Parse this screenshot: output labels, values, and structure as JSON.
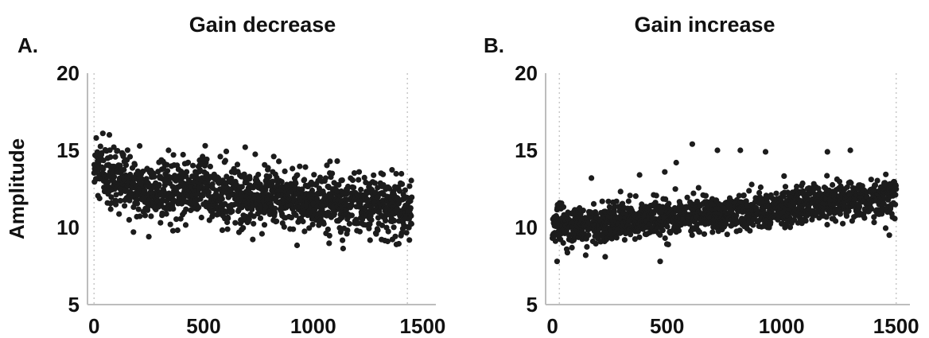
{
  "chart_data": [
    {
      "type": "scatter",
      "panel_letter": "A.",
      "title": "Gain decrease",
      "xlabel": "",
      "ylabel": "Amplitude",
      "xlim": [
        -30,
        1560
      ],
      "ylim": [
        5,
        20
      ],
      "xticks": [
        0,
        500,
        1000,
        1500
      ],
      "yticks": [
        5,
        10,
        15,
        20
      ],
      "tick_labels_x": [
        "0",
        "500",
        "1000",
        "1500"
      ],
      "tick_labels_y": [
        "5",
        "10",
        "15",
        "20"
      ],
      "marker_lines_x": [
        0,
        1430
      ],
      "n_points": 1450,
      "trend": [
        [
          0,
          13.6
        ],
        [
          100,
          12.9
        ],
        [
          250,
          12.4
        ],
        [
          400,
          12.2
        ],
        [
          500,
          12.9
        ],
        [
          530,
          12.1
        ],
        [
          800,
          11.9
        ],
        [
          1000,
          11.7
        ],
        [
          1200,
          11.4
        ],
        [
          1450,
          11.2
        ]
      ],
      "spread_sd": 0.95,
      "outliers": [
        {
          "x": 10,
          "y": 15.8
        },
        {
          "x": 40,
          "y": 16.1
        },
        {
          "x": 70,
          "y": 16.0
        },
        {
          "x": 90,
          "y": 15.2
        },
        {
          "x": 340,
          "y": 15.0
        },
        {
          "x": 690,
          "y": 15.2
        },
        {
          "x": 820,
          "y": 14.6
        },
        {
          "x": 1110,
          "y": 14.3
        },
        {
          "x": 1380,
          "y": 8.9
        },
        {
          "x": 1340,
          "y": 9.1
        },
        {
          "x": 250,
          "y": 9.4
        },
        {
          "x": 180,
          "y": 9.7
        }
      ],
      "grid": false
    },
    {
      "type": "scatter",
      "panel_letter": "B.",
      "title": "Gain increase",
      "xlabel": "",
      "ylabel": "",
      "xlim": [
        -30,
        1560
      ],
      "ylim": [
        5,
        20
      ],
      "xticks": [
        0,
        500,
        1000,
        1500
      ],
      "yticks": [
        5,
        10,
        15,
        20
      ],
      "tick_labels_x": [
        "0",
        "500",
        "1000",
        "1500"
      ],
      "tick_labels_y": [
        "5",
        "10",
        "15",
        "20"
      ],
      "marker_lines_x": [
        30,
        1500
      ],
      "n_points": 1500,
      "trend": [
        [
          0,
          10.0
        ],
        [
          200,
          10.2
        ],
        [
          500,
          10.6
        ],
        [
          800,
          11.0
        ],
        [
          1000,
          11.3
        ],
        [
          1250,
          11.7
        ],
        [
          1500,
          12.1
        ]
      ],
      "spread_sd": 0.6,
      "outliers": [
        {
          "x": 20,
          "y": 7.8
        },
        {
          "x": 230,
          "y": 8.1
        },
        {
          "x": 470,
          "y": 7.8
        },
        {
          "x": 380,
          "y": 13.4
        },
        {
          "x": 490,
          "y": 13.6
        },
        {
          "x": 610,
          "y": 15.4
        },
        {
          "x": 720,
          "y": 15.0
        },
        {
          "x": 820,
          "y": 15.0
        },
        {
          "x": 930,
          "y": 14.9
        },
        {
          "x": 1300,
          "y": 15.0
        },
        {
          "x": 1470,
          "y": 9.5
        },
        {
          "x": 170,
          "y": 13.2
        },
        {
          "x": 1200,
          "y": 14.9
        },
        {
          "x": 540,
          "y": 14.2
        }
      ],
      "grid": false
    }
  ]
}
